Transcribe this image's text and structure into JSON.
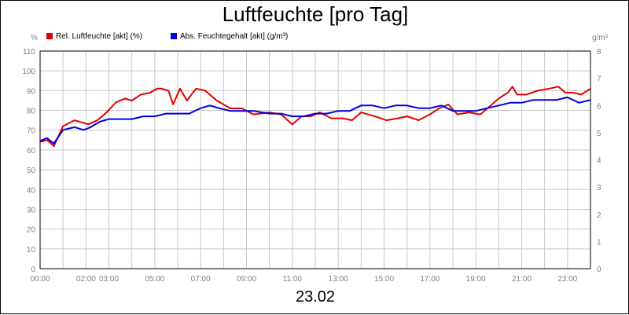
{
  "chart_data": {
    "type": "line",
    "title": "Luftfeuchte [pro Tag]",
    "xlabel": "23.02",
    "ylabel_left": "%",
    "ylabel_right": "g/m³",
    "ylim_left": [
      0,
      110
    ],
    "ylim_right": [
      0,
      8
    ],
    "y_ticks_left": [
      "0",
      "10",
      "20",
      "30",
      "40",
      "50",
      "60",
      "70",
      "80",
      "90",
      "100",
      "110"
    ],
    "y_ticks_right": [
      "0",
      "1",
      "2",
      "3",
      "4",
      "5",
      "6",
      "7",
      "8"
    ],
    "x_ticks": [
      "00:00",
      "02:00",
      "03:00",
      "05:00",
      "07:00",
      "09:00",
      "11:00",
      "13:00",
      "15:00",
      "17:00",
      "19:00",
      "21:00",
      "23:00"
    ],
    "grid": true,
    "legend_position": "top-left",
    "series": [
      {
        "name": "Rel. Luftfeuchte [akt] (%)",
        "color": "#e00000",
        "axis": "left",
        "x_hours": [
          0,
          0.3,
          0.6,
          1.0,
          1.5,
          1.8,
          2.1,
          2.5,
          2.9,
          3.3,
          3.7,
          4.0,
          4.4,
          4.8,
          5.1,
          5.3,
          5.6,
          5.8,
          6.1,
          6.4,
          6.8,
          7.2,
          7.7,
          8.3,
          8.8,
          9.3,
          10.0,
          10.5,
          11.0,
          11.4,
          11.8,
          12.2,
          12.7,
          13.2,
          13.6,
          14.0,
          14.6,
          15.1,
          15.6,
          16.0,
          16.5,
          17.0,
          17.4,
          17.8,
          18.2,
          18.7,
          19.2,
          19.6,
          20.0,
          20.4,
          20.6,
          20.8,
          21.2,
          21.7,
          22.2,
          22.6,
          22.9,
          23.2,
          23.6,
          24.0
        ],
        "values": [
          64,
          65,
          62,
          72,
          75,
          74,
          73,
          75,
          79,
          84,
          86,
          85,
          88,
          89,
          91,
          91,
          90,
          83,
          91,
          85,
          91,
          90,
          85,
          81,
          81,
          78,
          79,
          78,
          73,
          77,
          77,
          79,
          76,
          76,
          75,
          79,
          77,
          75,
          76,
          77,
          75,
          78,
          81,
          83,
          78,
          79,
          78,
          82,
          86,
          89,
          92,
          88,
          88,
          90,
          91,
          92,
          89,
          89,
          88,
          91
        ]
      },
      {
        "name": "Abs. Feuchtegehalt [akt] (g/m³)",
        "color": "#0000e0",
        "axis": "right",
        "x_hours": [
          0,
          0.3,
          0.6,
          1.0,
          1.5,
          1.9,
          2.2,
          2.6,
          3.0,
          3.5,
          4.0,
          4.5,
          5.0,
          5.5,
          6.0,
          6.5,
          7.0,
          7.4,
          7.8,
          8.3,
          8.8,
          9.3,
          10.0,
          10.5,
          11.0,
          11.5,
          12.0,
          12.5,
          13.0,
          13.5,
          14.0,
          14.5,
          15.0,
          15.5,
          16.0,
          16.5,
          17.0,
          17.5,
          18.0,
          18.5,
          19.0,
          19.5,
          20.0,
          20.5,
          21.0,
          21.5,
          22.0,
          22.5,
          23.0,
          23.5,
          24.0
        ],
        "values": [
          4.7,
          4.8,
          4.6,
          5.1,
          5.2,
          5.1,
          5.2,
          5.4,
          5.5,
          5.5,
          5.5,
          5.6,
          5.6,
          5.7,
          5.7,
          5.7,
          5.9,
          6.0,
          5.9,
          5.8,
          5.8,
          5.8,
          5.7,
          5.7,
          5.6,
          5.6,
          5.7,
          5.7,
          5.8,
          5.8,
          6.0,
          6.0,
          5.9,
          6.0,
          6.0,
          5.9,
          5.9,
          6.0,
          5.8,
          5.8,
          5.8,
          5.9,
          6.0,
          6.1,
          6.1,
          6.2,
          6.2,
          6.2,
          6.3,
          6.1,
          6.2
        ]
      }
    ]
  }
}
